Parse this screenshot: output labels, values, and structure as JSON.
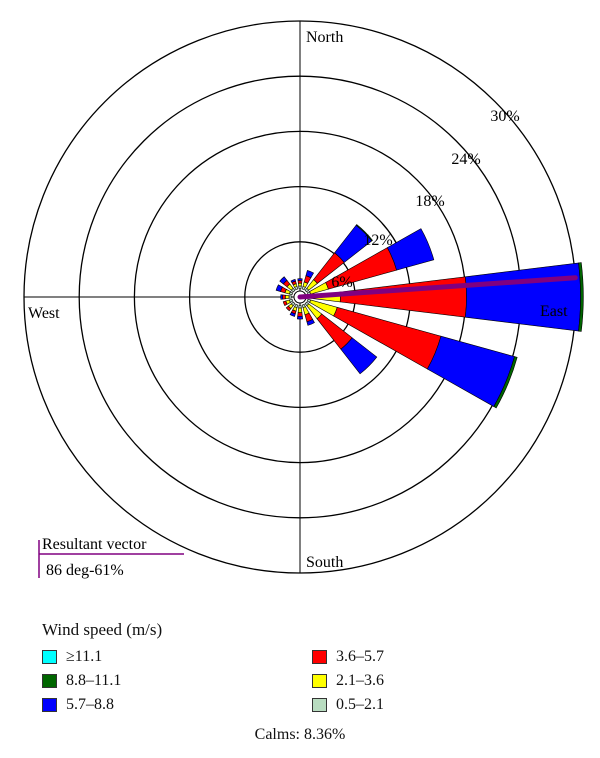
{
  "chart_data": {
    "type": "wind-rose",
    "title": "",
    "directions": [
      "North",
      "East",
      "South",
      "West"
    ],
    "ring_labels": [
      "6%",
      "12%",
      "18%",
      "24%",
      "30%"
    ],
    "ring_values": [
      6,
      12,
      18,
      24,
      30
    ],
    "max_percent": 30,
    "speed_bins": [
      {
        "name": "0.5–2.1",
        "color": "#b8dcc0"
      },
      {
        "name": "2.1–3.6",
        "color": "#ffff00"
      },
      {
        "name": "3.6–5.7",
        "color": "#ff0000"
      },
      {
        "name": "5.7–8.8",
        "color": "#0000ff"
      },
      {
        "name": "8.8–11.1",
        "color": "#006600"
      },
      {
        "name": "≥11.1",
        "color": "#00ffff"
      }
    ],
    "sectors": [
      {
        "dir": 0,
        "values": [
          0.3,
          0.3,
          0.3,
          0.2,
          0.0,
          0.0
        ]
      },
      {
        "dir": 22.5,
        "values": [
          0.3,
          0.5,
          0.7,
          0.6,
          0.0,
          0.0
        ]
      },
      {
        "dir": 45,
        "values": [
          0.3,
          1.2,
          3.7,
          3.8,
          0.1,
          0.0
        ]
      },
      {
        "dir": 67.5,
        "values": [
          0.3,
          2.0,
          7.7,
          4.2,
          0.0,
          0.0
        ]
      },
      {
        "dir": 90,
        "values": [
          0.3,
          3.2,
          13.7,
          12.4,
          0.3,
          0.0
        ]
      },
      {
        "dir": 112.5,
        "values": [
          0.3,
          3.0,
          11.7,
          8.3,
          0.3,
          0.0
        ]
      },
      {
        "dir": 135,
        "values": [
          0.3,
          1.8,
          4.2,
          3.4,
          0.0,
          0.0
        ]
      },
      {
        "dir": 157.5,
        "values": [
          0.3,
          0.8,
          0.8,
          0.4,
          0.0,
          0.0
        ]
      },
      {
        "dir": 180,
        "values": [
          0.3,
          0.5,
          0.4,
          0.3,
          0.0,
          0.0
        ]
      },
      {
        "dir": 202.5,
        "values": [
          0.3,
          0.4,
          0.3,
          0.3,
          0.0,
          0.0
        ]
      },
      {
        "dir": 225,
        "values": [
          0.3,
          0.4,
          0.3,
          0.0,
          0.0,
          0.0
        ]
      },
      {
        "dir": 247.5,
        "values": [
          0.3,
          0.4,
          0.3,
          0.0,
          0.0,
          0.0
        ]
      },
      {
        "dir": 270,
        "values": [
          0.3,
          0.4,
          0.3,
          0.2,
          0.0,
          0.0
        ]
      },
      {
        "dir": 292.5,
        "values": [
          0.3,
          0.5,
          0.5,
          0.5,
          0.0,
          0.0
        ]
      },
      {
        "dir": 315,
        "values": [
          0.3,
          0.6,
          0.5,
          0.5,
          0.0,
          0.0
        ]
      },
      {
        "dir": 337.5,
        "values": [
          0.3,
          0.3,
          0.3,
          0.2,
          0.0,
          0.0
        ]
      }
    ],
    "resultant_vector": {
      "label": "Resultant vector",
      "value_label": "86 deg-61%",
      "direction_deg": 86,
      "percent": 30,
      "color": "#800080"
    },
    "legend": {
      "title": "Wind speed (m/s)",
      "items": [
        {
          "label": "≥11.1",
          "color": "#00ffff"
        },
        {
          "label": "8.8–11.1",
          "color": "#006600"
        },
        {
          "label": "5.7–8.8",
          "color": "#0000ff"
        },
        {
          "label": "3.6–5.7",
          "color": "#ff0000"
        },
        {
          "label": "2.1–3.6",
          "color": "#ffff00"
        },
        {
          "label": "0.5–2.1",
          "color": "#b8dcc0"
        }
      ],
      "calms_label": "Calms: 8.36%"
    }
  }
}
